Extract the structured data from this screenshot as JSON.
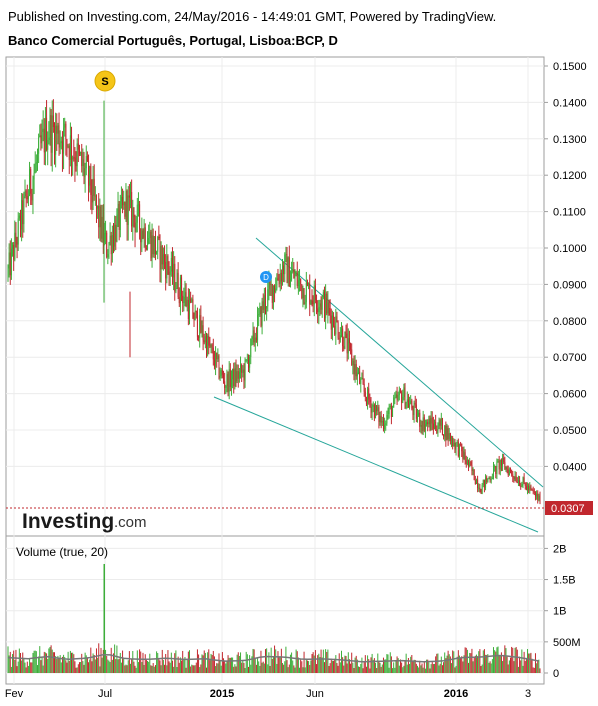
{
  "header": {
    "published": "Published on Investing.com, 24/May/2016 - 14:49:01 GMT, Powered by TradingView.",
    "symbol_title": "Banco Comercial Português, Portugal, Lisboa:BCP, D"
  },
  "watermark": {
    "brand": "Investing",
    "suffix": ".com"
  },
  "markers": {
    "split": "S",
    "dividend": "D"
  },
  "price_panel": {
    "last_price_label": "0.0307",
    "y_ticks": [
      "0.1500",
      "0.1400",
      "0.1300",
      "0.1200",
      "0.1100",
      "0.1000",
      "0.0900",
      "0.0800",
      "0.0700",
      "0.0600",
      "0.0500",
      "0.0400",
      "0.0307"
    ]
  },
  "volume_panel": {
    "title": "Volume (true, 20)",
    "y_ticks": [
      "2B",
      "1.5B",
      "1B",
      "500M",
      "0"
    ]
  },
  "x_ticks": [
    "Fev",
    "Jul",
    "2015",
    "Jun",
    "2016",
    "3"
  ],
  "colors": {
    "up": "#3dae3a",
    "down": "#c1272d",
    "trend": "#26a69a",
    "ma": "#777777",
    "last": "#c1272d",
    "marker_s": "#f5c518",
    "marker_d": "#2196f3"
  },
  "chart_data": {
    "type": "line",
    "title": "Banco Comercial Português, Portugal, Lisboa:BCP, D",
    "x": [
      "2014-02",
      "2014-03",
      "2014-04",
      "2014-05",
      "2014-06",
      "2014-07",
      "2014-08",
      "2014-09",
      "2014-10",
      "2014-11",
      "2014-12",
      "2015-01",
      "2015-02",
      "2015-03",
      "2015-04",
      "2015-05",
      "2015-06",
      "2015-07",
      "2015-08",
      "2015-09",
      "2015-10",
      "2015-11",
      "2015-12",
      "2016-01",
      "2016-02",
      "2016-03",
      "2016-04",
      "2016-05"
    ],
    "series": [
      {
        "values": [
          0.093,
          0.115,
          0.133,
          0.13,
          0.12,
          0.1,
          0.112,
          0.104,
          0.096,
          0.086,
          0.075,
          0.063,
          0.066,
          0.085,
          0.095,
          0.089,
          0.085,
          0.076,
          0.061,
          0.052,
          0.06,
          0.052,
          0.051,
          0.044,
          0.034,
          0.041,
          0.036,
          0.0307
        ]
      }
    ],
    "ylim": [
      0.028,
      0.152
    ],
    "annotations": [
      {
        "label": "S",
        "x": "2014-07",
        "value": 0.1405
      },
      {
        "label": "D",
        "x": "2015-04",
        "value": 0.0935
      }
    ],
    "volume": {
      "values_m": [
        260,
        240,
        280,
        230,
        250,
        320,
        240,
        230,
        250,
        230,
        240,
        200,
        210,
        280,
        270,
        230,
        240,
        220,
        190,
        200,
        210,
        190,
        200,
        260,
        270,
        300,
        260,
        200
      ],
      "spikes_m": [
        {
          "x": "2014-07",
          "value": 1750
        }
      ],
      "ylim_m": [
        0,
        2100
      ]
    },
    "grid": true,
    "legend": "none"
  }
}
